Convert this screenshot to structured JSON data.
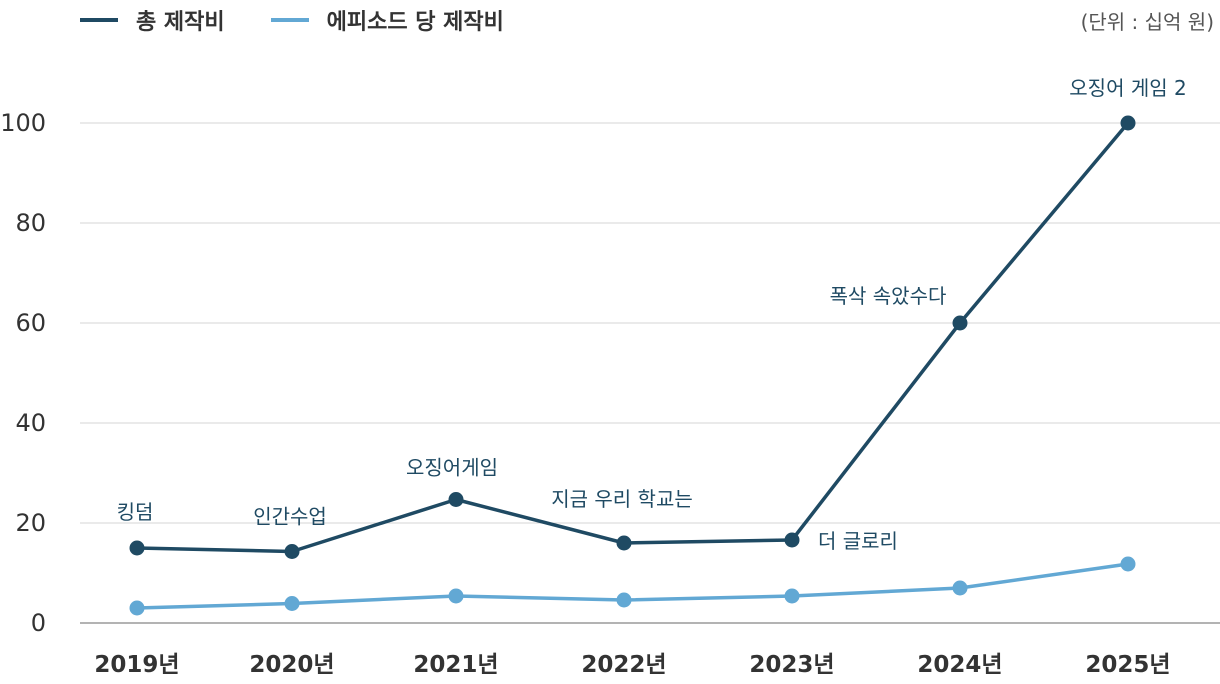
{
  "unit_note": "(단위 : 십억 원)",
  "legend": [
    {
      "label": "총 제작비",
      "color": "#1f4a63"
    },
    {
      "label": "에피소드 당 제작비",
      "color": "#62a8d4"
    }
  ],
  "chart_data": {
    "type": "line",
    "categories": [
      "2019년",
      "2020년",
      "2021년",
      "2022년",
      "2023년",
      "2024년",
      "2025년"
    ],
    "ylim": [
      0,
      110
    ],
    "yticks": [
      0,
      20,
      40,
      60,
      80,
      100
    ],
    "grid": true,
    "legend_position": "top-left",
    "series": [
      {
        "name": "총 제작비",
        "color": "#1f4a63",
        "values": [
          15,
          14.3,
          24.7,
          16,
          16.6,
          60,
          100
        ],
        "point_labels": [
          "킹덤",
          "인간수업",
          "오징어게임",
          "지금 우리 학교는",
          "더 글로리",
          "폭삭 속았수다",
          "오징어 게임 2"
        ]
      },
      {
        "name": "에피소드 당 제작비",
        "color": "#62a8d4",
        "values": [
          3,
          3.9,
          5.4,
          4.6,
          5.4,
          7,
          11.8
        ]
      }
    ]
  }
}
